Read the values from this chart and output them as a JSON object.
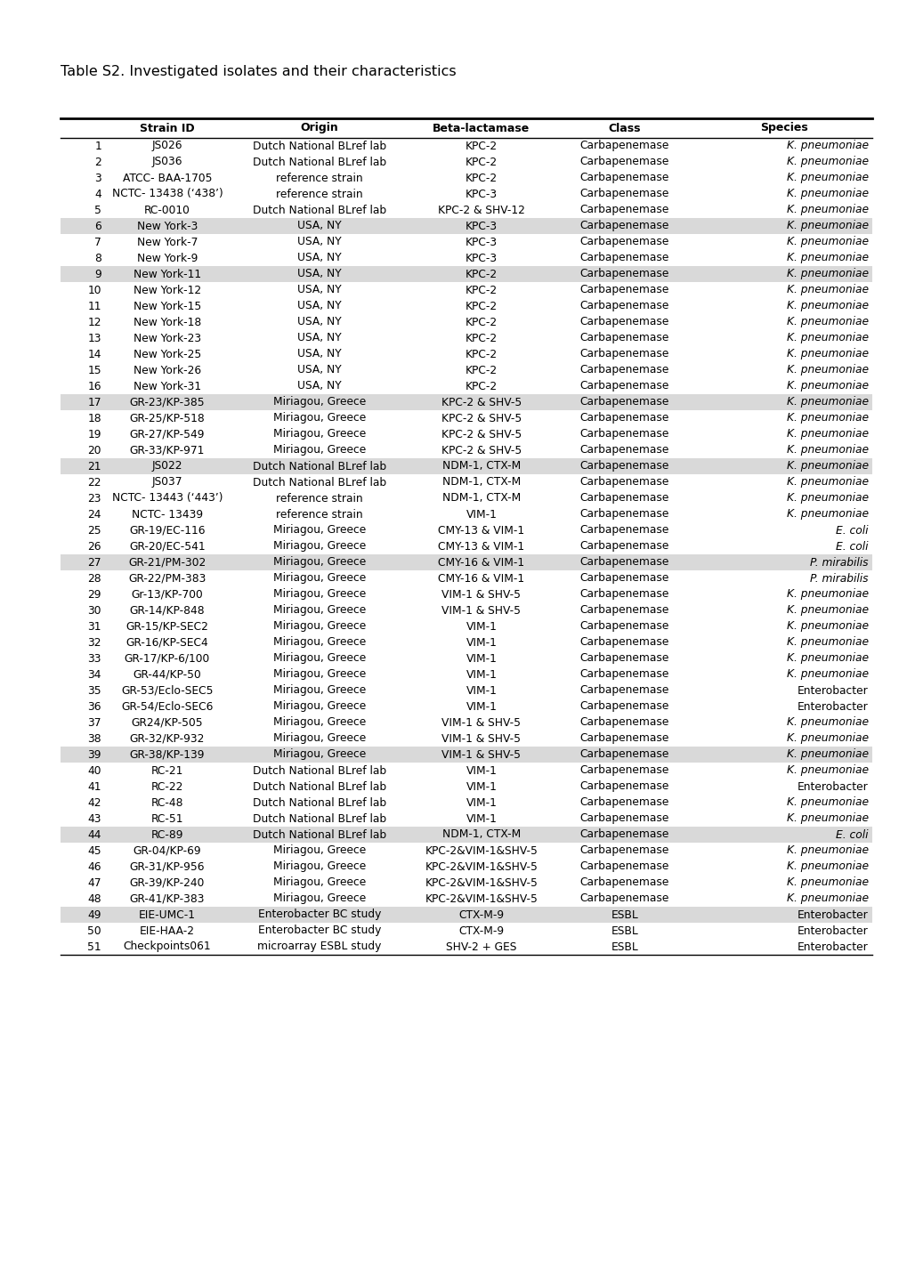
{
  "title": "Table S2. Investigated isolates and their characteristics",
  "headers": [
    "Strain ID",
    "Origin",
    "Beta-lactamase",
    "Class",
    "Species"
  ],
  "rows": [
    [
      "1",
      "JS026",
      "Dutch National BLref lab",
      "KPC-2",
      "Carbapenemase",
      "K. pneumoniae"
    ],
    [
      "2",
      "JS036",
      "Dutch National BLref lab",
      "KPC-2",
      "Carbapenemase",
      "K. pneumoniae"
    ],
    [
      "3",
      "ATCC- BAA-1705",
      "reference strain",
      "KPC-2",
      "Carbapenemase",
      "K. pneumoniae"
    ],
    [
      "4",
      "NCTC- 13438 (‘438’)",
      "reference strain",
      "KPC-3",
      "Carbapenemase",
      "K. pneumoniae"
    ],
    [
      "5",
      "RC-0010",
      "Dutch National BLref lab",
      "KPC-2 & SHV-12",
      "Carbapenemase",
      "K. pneumoniae"
    ],
    [
      "6",
      "New York-3",
      "USA, NY",
      "KPC-3",
      "Carbapenemase",
      "K. pneumoniae"
    ],
    [
      "7",
      "New York-7",
      "USA, NY",
      "KPC-3",
      "Carbapenemase",
      "K. pneumoniae"
    ],
    [
      "8",
      "New York-9",
      "USA, NY",
      "KPC-3",
      "Carbapenemase",
      "K. pneumoniae"
    ],
    [
      "9",
      "New York-11",
      "USA, NY",
      "KPC-2",
      "Carbapenemase",
      "K. pneumoniae"
    ],
    [
      "10",
      "New York-12",
      "USA, NY",
      "KPC-2",
      "Carbapenemase",
      "K. pneumoniae"
    ],
    [
      "11",
      "New York-15",
      "USA, NY",
      "KPC-2",
      "Carbapenemase",
      "K. pneumoniae"
    ],
    [
      "12",
      "New York-18",
      "USA, NY",
      "KPC-2",
      "Carbapenemase",
      "K. pneumoniae"
    ],
    [
      "13",
      "New York-23",
      "USA, NY",
      "KPC-2",
      "Carbapenemase",
      "K. pneumoniae"
    ],
    [
      "14",
      "New York-25",
      "USA, NY",
      "KPC-2",
      "Carbapenemase",
      "K. pneumoniae"
    ],
    [
      "15",
      "New York-26",
      "USA, NY",
      "KPC-2",
      "Carbapenemase",
      "K. pneumoniae"
    ],
    [
      "16",
      "New York-31",
      "USA, NY",
      "KPC-2",
      "Carbapenemase",
      "K. pneumoniae"
    ],
    [
      "17",
      "GR-23/KP-385",
      "Miriagou, Greece",
      "KPC-2 & SHV-5",
      "Carbapenemase",
      "K. pneumoniae"
    ],
    [
      "18",
      "GR-25/KP-518",
      "Miriagou, Greece",
      "KPC-2 & SHV-5",
      "Carbapenemase",
      "K. pneumoniae"
    ],
    [
      "19",
      "GR-27/KP-549",
      "Miriagou, Greece",
      "KPC-2 & SHV-5",
      "Carbapenemase",
      "K. pneumoniae"
    ],
    [
      "20",
      "GR-33/KP-971",
      "Miriagou, Greece",
      "KPC-2 & SHV-5",
      "Carbapenemase",
      "K. pneumoniae"
    ],
    [
      "21",
      "JS022",
      "Dutch National BLref lab",
      "NDM-1, CTX-M",
      "Carbapenemase",
      "K. pneumoniae"
    ],
    [
      "22",
      "JS037",
      "Dutch National BLref lab",
      "NDM-1, CTX-M",
      "Carbapenemase",
      "K. pneumoniae"
    ],
    [
      "23",
      "NCTC- 13443 (‘443’)",
      "reference strain",
      "NDM-1, CTX-M",
      "Carbapenemase",
      "K. pneumoniae"
    ],
    [
      "24",
      "NCTC- 13439",
      "reference strain",
      "VIM-1",
      "Carbapenemase",
      "K. pneumoniae"
    ],
    [
      "25",
      "GR-19/EC-116",
      "Miriagou, Greece",
      "CMY-13 & VIM-1",
      "Carbapenemase",
      "E. coli"
    ],
    [
      "26",
      "GR-20/EC-541",
      "Miriagou, Greece",
      "CMY-13 & VIM-1",
      "Carbapenemase",
      "E. coli"
    ],
    [
      "27",
      "GR-21/PM-302",
      "Miriagou, Greece",
      "CMY-16 & VIM-1",
      "Carbapenemase",
      "P. mirabilis"
    ],
    [
      "28",
      "GR-22/PM-383",
      "Miriagou, Greece",
      "CMY-16 & VIM-1",
      "Carbapenemase",
      "P. mirabilis"
    ],
    [
      "29",
      "Gr-13/KP-700",
      "Miriagou, Greece",
      "VIM-1 & SHV-5",
      "Carbapenemase",
      "K. pneumoniae"
    ],
    [
      "30",
      "GR-14/KP-848",
      "Miriagou, Greece",
      "VIM-1 & SHV-5",
      "Carbapenemase",
      "K. pneumoniae"
    ],
    [
      "31",
      "GR-15/KP-SEC2",
      "Miriagou, Greece",
      "VIM-1",
      "Carbapenemase",
      "K. pneumoniae"
    ],
    [
      "32",
      "GR-16/KP-SEC4",
      "Miriagou, Greece",
      "VIM-1",
      "Carbapenemase",
      "K. pneumoniae"
    ],
    [
      "33",
      "GR-17/KP-6/100",
      "Miriagou, Greece",
      "VIM-1",
      "Carbapenemase",
      "K. pneumoniae"
    ],
    [
      "34",
      "GR-44/KP-50",
      "Miriagou, Greece",
      "VIM-1",
      "Carbapenemase",
      "K. pneumoniae"
    ],
    [
      "35",
      "GR-53/Eclo-SEC5",
      "Miriagou, Greece",
      "VIM-1",
      "Carbapenemase",
      "Enterobacter"
    ],
    [
      "36",
      "GR-54/Eclo-SEC6",
      "Miriagou, Greece",
      "VIM-1",
      "Carbapenemase",
      "Enterobacter"
    ],
    [
      "37",
      "GR24/KP-505",
      "Miriagou, Greece",
      "VIM-1 & SHV-5",
      "Carbapenemase",
      "K. pneumoniae"
    ],
    [
      "38",
      "GR-32/KP-932",
      "Miriagou, Greece",
      "VIM-1 & SHV-5",
      "Carbapenemase",
      "K. pneumoniae"
    ],
    [
      "39",
      "GR-38/KP-139",
      "Miriagou, Greece",
      "VIM-1 & SHV-5",
      "Carbapenemase",
      "K. pneumoniae"
    ],
    [
      "40",
      "RC-21",
      "Dutch National BLref lab",
      "VIM-1",
      "Carbapenemase",
      "K. pneumoniae"
    ],
    [
      "41",
      "RC-22",
      "Dutch National BLref lab",
      "VIM-1",
      "Carbapenemase",
      "Enterobacter"
    ],
    [
      "42",
      "RC-48",
      "Dutch National BLref lab",
      "VIM-1",
      "Carbapenemase",
      "K. pneumoniae"
    ],
    [
      "43",
      "RC-51",
      "Dutch National BLref lab",
      "VIM-1",
      "Carbapenemase",
      "K. pneumoniae"
    ],
    [
      "44",
      "RC-89",
      "Dutch National BLref lab",
      "NDM-1, CTX-M",
      "Carbapenemase",
      "E. coli"
    ],
    [
      "45",
      "GR-04/KP-69",
      "Miriagou, Greece",
      "KPC-2&VIM-1&SHV-5",
      "Carbapenemase",
      "K. pneumoniae"
    ],
    [
      "46",
      "GR-31/KP-956",
      "Miriagou, Greece",
      "KPC-2&VIM-1&SHV-5",
      "Carbapenemase",
      "K. pneumoniae"
    ],
    [
      "47",
      "GR-39/KP-240",
      "Miriagou, Greece",
      "KPC-2&VIM-1&SHV-5",
      "Carbapenemase",
      "K. pneumoniae"
    ],
    [
      "48",
      "GR-41/KP-383",
      "Miriagou, Greece",
      "KPC-2&VIM-1&SHV-5",
      "Carbapenemase",
      "K. pneumoniae"
    ],
    [
      "49",
      "EIE-UMC-1",
      "Enterobacter BC study",
      "CTX-M-9",
      "ESBL",
      "Enterobacter"
    ],
    [
      "50",
      "EIE-HAA-2",
      "Enterobacter BC study",
      "CTX-M-9",
      "ESBL",
      "Enterobacter"
    ],
    [
      "51",
      "Checkpoints061",
      "microarray ESBL study",
      "SHV-2 + GES",
      "ESBL",
      "Enterobacter"
    ]
  ],
  "shaded_rows": [
    6,
    9,
    17,
    21,
    27,
    39,
    44,
    49
  ],
  "shade_color": "#d9d9d9",
  "bg_color": "#ffffff",
  "title_fontsize": 11.5,
  "header_fontsize": 9.0,
  "row_fontsize": 8.8,
  "italic_species": [
    "K. pneumoniae",
    "E. coli",
    "P. mirabilis"
  ]
}
